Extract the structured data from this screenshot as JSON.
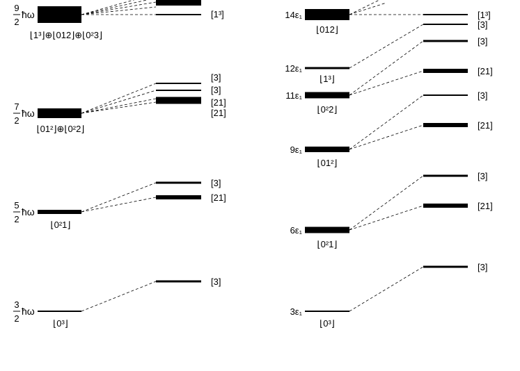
{
  "left": {
    "levels": [
      {
        "id": "l9",
        "frac_num": "9",
        "frac_den": "2",
        "unit": "ħω",
        "label": "⌊1³⌋⊕⌊012⌋⊕⌊0²3⌋"
      },
      {
        "id": "l7",
        "frac_num": "7",
        "frac_den": "2",
        "unit": "ħω",
        "label": "⌊01²⌋⊕⌊0²2⌋"
      },
      {
        "id": "l5",
        "frac_num": "5",
        "frac_den": "2",
        "unit": "ħω",
        "label": "⌊0²1⌋"
      },
      {
        "id": "l3",
        "frac_num": "3",
        "frac_den": "2",
        "unit": "ħω",
        "label": "⌊0³⌋"
      }
    ],
    "sublevels": [
      {
        "id": "ls1",
        "label": "[1³]"
      },
      {
        "id": "ls2",
        "label": "[3]"
      },
      {
        "id": "ls3",
        "label": "[3]"
      },
      {
        "id": "ls4",
        "label": "[21]"
      },
      {
        "id": "ls5",
        "label": "[21]"
      },
      {
        "id": "ls6",
        "label": "[3]"
      },
      {
        "id": "ls7",
        "label": "[21]"
      },
      {
        "id": "ls8",
        "label": "[3]"
      }
    ]
  },
  "right": {
    "levels": [
      {
        "id": "r14",
        "energy": "14ε₁",
        "label": "⌊012⌋"
      },
      {
        "id": "r12",
        "energy": "12ε₁",
        "label": "⌊1³⌋"
      },
      {
        "id": "r11",
        "energy": "11ε₁",
        "label": "⌊0²2⌋"
      },
      {
        "id": "r9",
        "energy": "9ε₁",
        "label": "⌊01²⌋"
      },
      {
        "id": "r6",
        "energy": "6ε₁",
        "label": "⌊0²1⌋"
      },
      {
        "id": "r3",
        "energy": "3ε₁",
        "label": "⌊0³⌋"
      }
    ],
    "sublevels": [
      {
        "id": "rs1",
        "label": "[1³]"
      },
      {
        "id": "rs2",
        "label": "[3]"
      },
      {
        "id": "rs3",
        "label": "[3]"
      },
      {
        "id": "rs4",
        "label": "[21]"
      },
      {
        "id": "rs5",
        "label": "[3]"
      },
      {
        "id": "rs6",
        "label": "[21]"
      },
      {
        "id": "rs7",
        "label": "[3]"
      },
      {
        "id": "rs8",
        "label": "[21]"
      },
      {
        "id": "rs9",
        "label": "[3]"
      }
    ]
  }
}
